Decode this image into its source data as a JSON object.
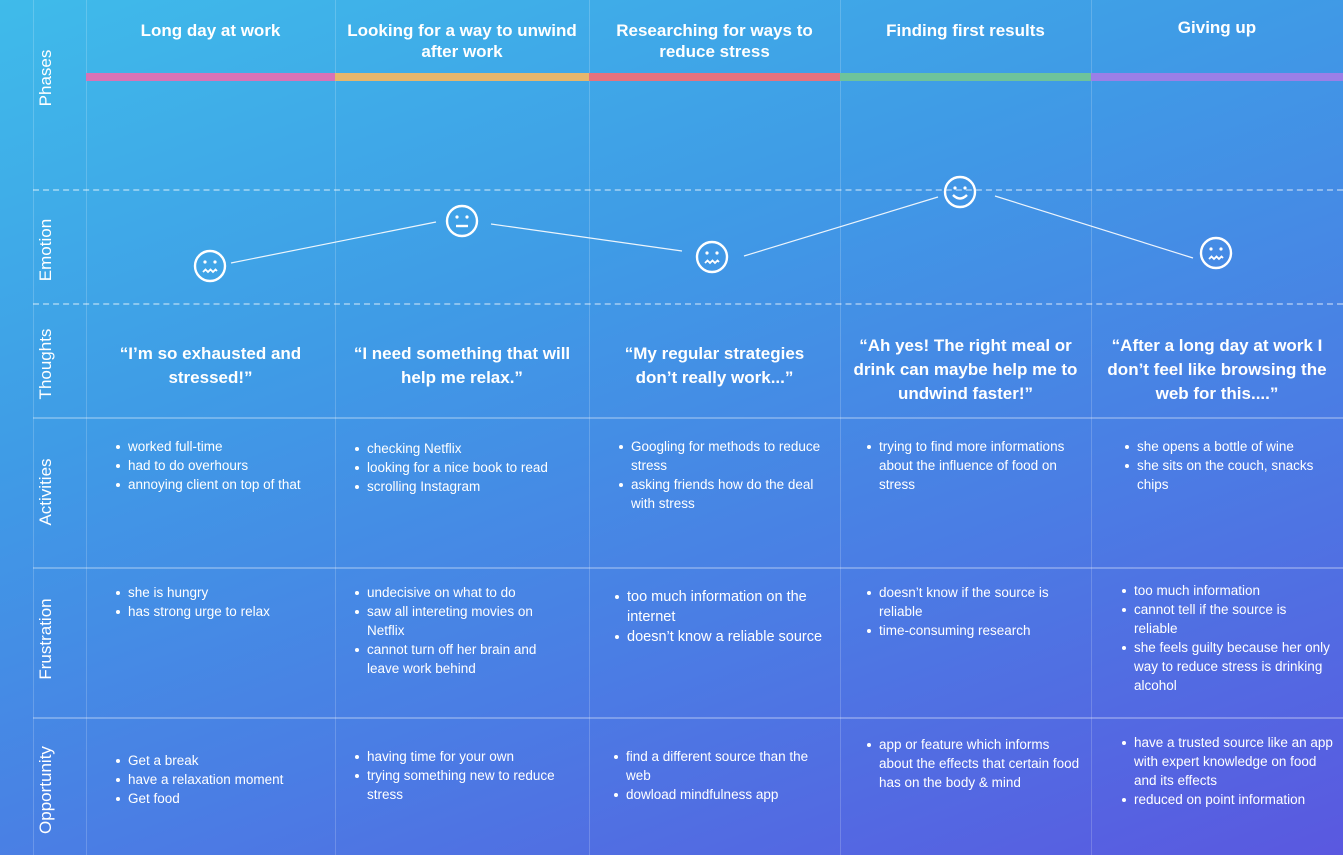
{
  "row_labels": {
    "phases": "Phases",
    "emotion": "Emotion",
    "thoughts": "Thoughts",
    "activities": "Activities",
    "frustration": "Frustration",
    "opportunity": "Opportunity"
  },
  "colors": {
    "phase_bars": [
      "#d873b6",
      "#e6b66c",
      "#e5727e",
      "#6ec39b",
      "#9b7fe7"
    ]
  },
  "columns": [
    {
      "phase": "Long day at work",
      "emotion": "stressed-face-icon",
      "thought": "“I’m so exhausted and stressed!”",
      "activities": [
        "worked full-time",
        "had to do overhours",
        "annoying client on top of that"
      ],
      "frustration": [
        "she is hungry",
        "has strong urge to relax"
      ],
      "opportunity": [
        "Get a break",
        "have a relaxation moment",
        "Get food"
      ]
    },
    {
      "phase": "Looking for a way to unwind after work",
      "emotion": "neutral-face-icon",
      "thought": "“I need something that will help me relax.”",
      "activities": [
        "checking Netflix",
        "looking for a nice book to read",
        "scrolling Instagram"
      ],
      "frustration": [
        "undecisive on what to do",
        "saw all intereting movies on Netflix",
        "cannot turn off her brain and leave work behind"
      ],
      "opportunity": [
        "having time for your own",
        "trying something new to reduce stress"
      ]
    },
    {
      "phase": "Researching for ways to reduce stress",
      "emotion": "stressed-face-icon",
      "thought": "“My regular strategies don’t really work...”",
      "activities": [
        "Googling for methods to reduce stress",
        "asking friends how do the deal with stress"
      ],
      "frustration": [
        "too much information on the internet",
        "doesn’t know a reliable source"
      ],
      "opportunity": [
        "find a different source than the web",
        "dowload mindfulness app"
      ]
    },
    {
      "phase": "Finding first results",
      "emotion": "happy-face-icon",
      "thought": "“Ah yes! The right meal or drink can maybe help me to undwind faster!”",
      "activities": [
        "trying to find more informations about the influence of food on stress"
      ],
      "frustration": [
        "doesn’t know if the source is reliable",
        "time-consuming research"
      ],
      "opportunity": [
        "app or feature which informs about the effects that certain food has on the body & mind"
      ]
    },
    {
      "phase": "Giving up",
      "emotion": "stressed-face-icon",
      "thought": "“After a long day at work I don’t feel like browsing the web for this....”",
      "activities": [
        "she opens a bottle of wine",
        "she sits on the couch, snacks chips"
      ],
      "frustration": [
        "too much information",
        "cannot tell if the source is reliable",
        "she feels guilty because her only way to reduce stress is drinking alcohol"
      ],
      "opportunity": [
        "have a trusted source like an app with expert knowledge on food and its effects",
        "reduced on point information"
      ]
    }
  ]
}
